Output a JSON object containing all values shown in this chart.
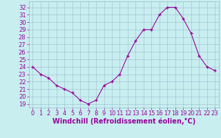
{
  "x": [
    0,
    1,
    2,
    3,
    4,
    5,
    6,
    7,
    8,
    9,
    10,
    11,
    12,
    13,
    14,
    15,
    16,
    17,
    18,
    19,
    20,
    21,
    22,
    23
  ],
  "y": [
    24,
    23,
    22.5,
    21.5,
    21,
    20.5,
    19.5,
    19,
    19.5,
    21.5,
    22,
    23,
    25.5,
    27.5,
    29,
    29,
    31,
    32,
    32,
    30.5,
    28.5,
    25.5,
    24,
    23.5
  ],
  "line_color": "#990099",
  "marker_color": "#990099",
  "bg_color": "#c8eef0",
  "grid_color": "#99bbcc",
  "xlabel": "Windchill (Refroidissement éolien,°C)",
  "yticks": [
    19,
    20,
    21,
    22,
    23,
    24,
    25,
    26,
    27,
    28,
    29,
    30,
    31,
    32
  ],
  "xticks": [
    0,
    1,
    2,
    3,
    4,
    5,
    6,
    7,
    8,
    9,
    10,
    11,
    12,
    13,
    14,
    15,
    16,
    17,
    18,
    19,
    20,
    21,
    22,
    23
  ],
  "ylim": [
    18.5,
    32.8
  ],
  "xlim": [
    -0.5,
    23.5
  ],
  "label_color": "#990099",
  "tick_fontsize": 6.0,
  "xlabel_fontsize": 7.0
}
